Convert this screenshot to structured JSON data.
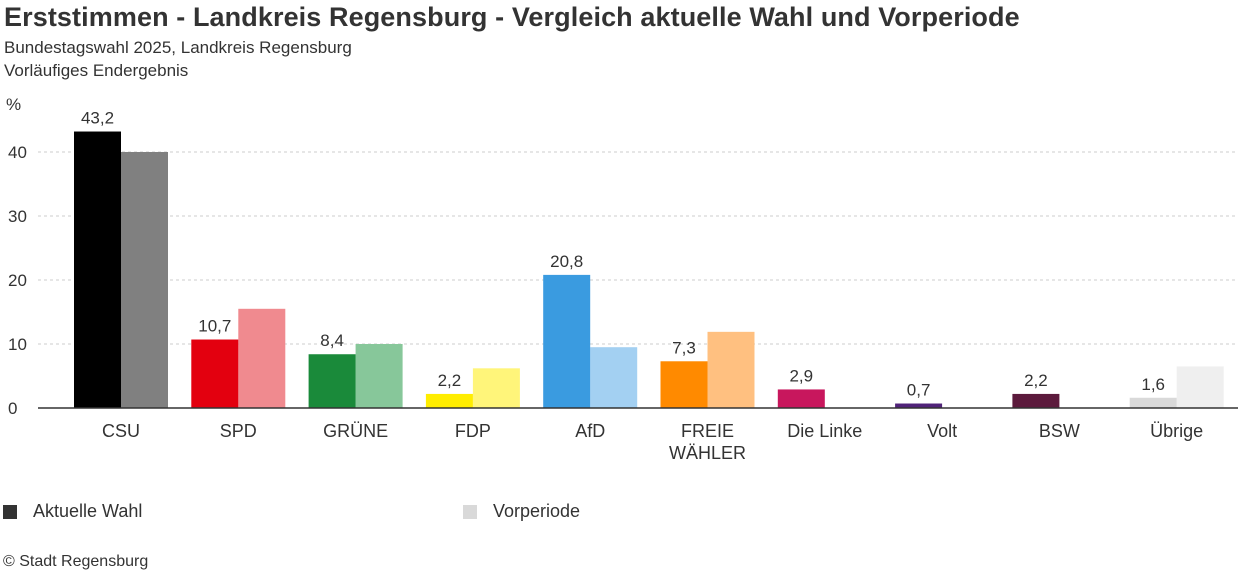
{
  "header": {
    "title": "Erststimmen - Landkreis Regensburg - Vergleich aktuelle Wahl und Vorperiode",
    "subtitle1": "Bundestagswahl 2025, Landkreis Regensburg",
    "subtitle2": "Vorläufiges Endergebnis"
  },
  "legend": {
    "current_label": "Aktuelle Wahl",
    "previous_label": "Vorperiode",
    "current_color": "#333333",
    "previous_color": "#d9d9d9"
  },
  "footer": {
    "source": "© Stadt Regensburg"
  },
  "chart_data": {
    "type": "bar",
    "title": "Erststimmen - Landkreis Regensburg - Vergleich aktuelle Wahl und Vorperiode",
    "ylabel": "%",
    "xlabel": "",
    "ylim": [
      0,
      45
    ],
    "yticks": [
      0,
      10,
      20,
      30,
      40
    ],
    "grid": true,
    "categories": [
      "CSU",
      "SPD",
      "GRÜNE",
      "FDP",
      "AfD",
      "FREIE WÄHLER",
      "Die Linke",
      "Volt",
      "BSW",
      "Übrige"
    ],
    "series": [
      {
        "name": "Aktuelle Wahl",
        "values": [
          43.2,
          10.7,
          8.4,
          2.2,
          20.8,
          7.3,
          2.9,
          0.7,
          2.2,
          1.6
        ],
        "labels": [
          "43,2",
          "10,7",
          "8,4",
          "2,2",
          "20,8",
          "7,3",
          "2,9",
          "0,7",
          "2,2",
          "1,6"
        ],
        "colors": [
          "#000000",
          "#e3000f",
          "#1a8a3a",
          "#ffed00",
          "#3a9be0",
          "#ff8a00",
          "#c8175d",
          "#502379",
          "#5c1a3c",
          "#d9d9d9"
        ]
      },
      {
        "name": "Vorperiode",
        "values": [
          40.0,
          15.5,
          10.0,
          6.2,
          9.5,
          11.9,
          0,
          0,
          0,
          6.5
        ],
        "colors": [
          "#808080",
          "#f08a8f",
          "#87c79a",
          "#fff57a",
          "#a3d0f2",
          "#ffc080",
          "#e8a0b8",
          "#b8a3d0",
          "#b08aa0",
          "#efefef"
        ]
      }
    ]
  }
}
